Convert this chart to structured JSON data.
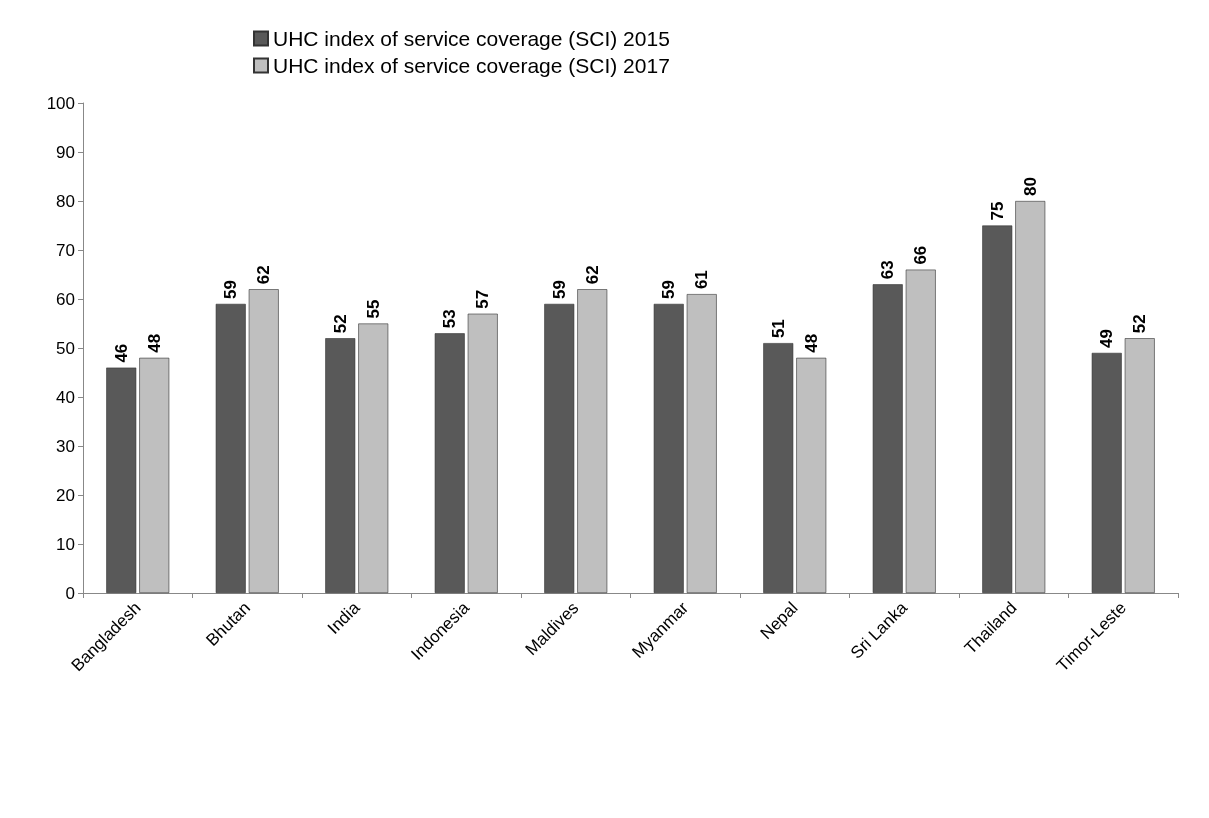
{
  "chart_data": {
    "type": "bar",
    "categories": [
      "Bangladesh",
      "Bhutan",
      "India",
      "Indonesia",
      "Maldives",
      "Myanmar",
      "Nepal",
      "Sri Lanka",
      "Thailand",
      "Timor-Leste"
    ],
    "series": [
      {
        "name": "UHC index of service coverage (SCI) 2015",
        "color": "#595959",
        "values": [
          46,
          59,
          52,
          53,
          59,
          59,
          51,
          63,
          75,
          49
        ]
      },
      {
        "name": "UHC index of service coverage (SCI) 2017",
        "color": "#bfbfbf",
        "values": [
          48,
          62,
          55,
          57,
          62,
          61,
          48,
          66,
          80,
          52
        ]
      }
    ],
    "ylim": [
      0,
      100
    ],
    "yticks": [
      0,
      10,
      20,
      30,
      40,
      50,
      60,
      70,
      80,
      90,
      100
    ],
    "grid": false,
    "legend": "top",
    "data_labels": true
  }
}
